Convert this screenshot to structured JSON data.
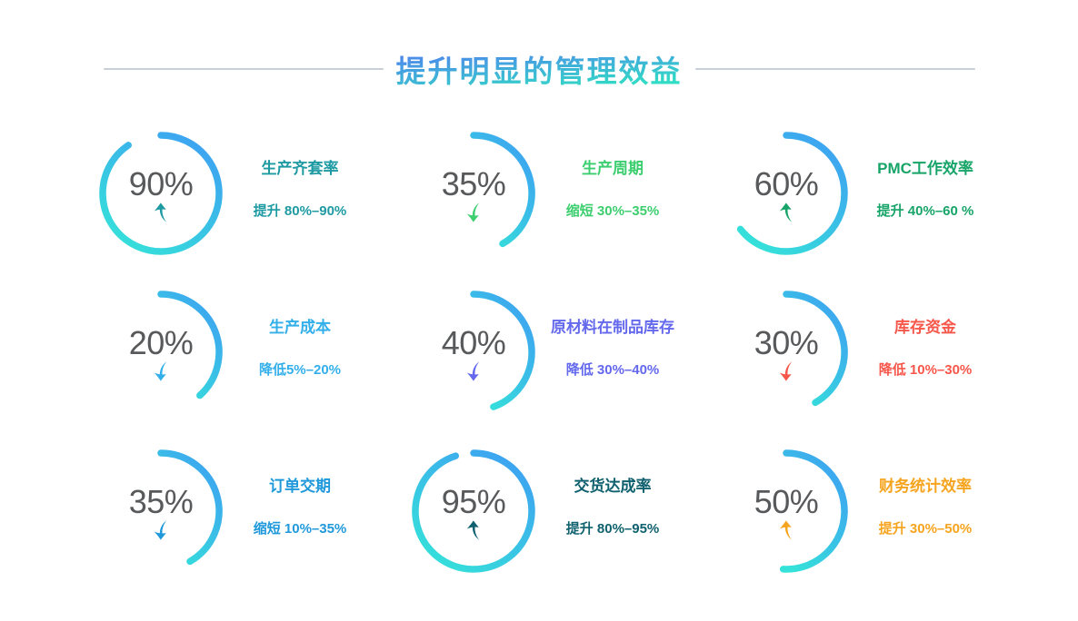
{
  "page": {
    "title": "提升明显的管理效益",
    "title_gradient": [
      "#4E86EC",
      "#30DFC3"
    ],
    "rule_color": "#C9CFD6",
    "value_color": "#58595B"
  },
  "chart_data": {
    "type": "gauge",
    "title": "提升明显的管理效益",
    "unit": "%",
    "arc_gradient": [
      "#3EA0F2",
      "#35E2D9"
    ],
    "metrics": [
      {
        "label": "生产齐套率",
        "value": 90,
        "display": "90%",
        "trend": "up",
        "desc": "提升 80%–90%",
        "color": "#1E9AA2",
        "arc_degrees": 326
      },
      {
        "label": "生产周期",
        "value": 35,
        "display": "35%",
        "trend": "down",
        "desc": "缩短 30%–35%",
        "color": "#3DCE6F",
        "arc_degrees": 150
      },
      {
        "label": "PMC工作效率",
        "value": 60,
        "display": "60%",
        "trend": "up",
        "desc": "提升 40%–60 %",
        "color": "#17A468",
        "arc_degrees": 232
      },
      {
        "label": "生产成本",
        "value": 20,
        "display": "20%",
        "trend": "down",
        "desc": "降低5%–20%",
        "color": "#33AFEA",
        "arc_degrees": 138
      },
      {
        "label": "原材料在制品库存",
        "value": 40,
        "display": "40%",
        "trend": "down",
        "desc": "降低 30%–40%",
        "color": "#6468EC",
        "arc_degrees": 160
      },
      {
        "label": "库存资金",
        "value": 30,
        "display": "30%",
        "trend": "down",
        "desc": "降低 10%–30%",
        "color": "#F7564A",
        "arc_degrees": 150
      },
      {
        "label": "订单交期",
        "value": 35,
        "display": "35%",
        "trend": "down",
        "desc": "缩短 10%–35%",
        "color": "#2099DB",
        "arc_degrees": 150
      },
      {
        "label": "交货达成率",
        "value": 95,
        "display": "95%",
        "trend": "up",
        "desc": "提升 80%–95%",
        "color": "#10616F",
        "arc_degrees": 342
      },
      {
        "label": "财务统计效率",
        "value": 50,
        "display": "50%",
        "trend": "up",
        "desc": "提升 30%–50%",
        "color": "#F6A41E",
        "arc_degrees": 183
      }
    ]
  }
}
